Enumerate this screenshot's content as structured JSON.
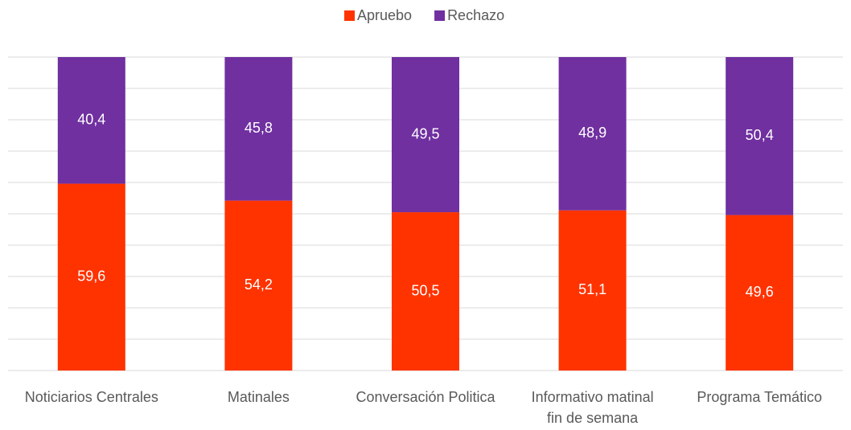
{
  "chart_data": {
    "type": "stacked_bar",
    "categories": [
      "Noticiarios Centrales",
      "Matinales",
      "Conversación Politica",
      "Informativo matinal\nfin de semana",
      "Programa Temático"
    ],
    "series": [
      {
        "name": "Apruebo",
        "color": "#ff3300",
        "values": [
          59.6,
          54.2,
          50.5,
          51.1,
          49.6
        ],
        "value_labels": [
          "59,6",
          "54,2",
          "50,5",
          "51,1",
          "49,6"
        ]
      },
      {
        "name": "Rechazo",
        "color": "#7030a0",
        "values": [
          40.4,
          45.8,
          49.5,
          48.9,
          50.4
        ],
        "value_labels": [
          "40,4",
          "45,8",
          "49,5",
          "48,9",
          "50,4"
        ]
      }
    ],
    "ylim": [
      0,
      100
    ],
    "yticks": [
      0,
      10,
      20,
      30,
      40,
      50,
      60,
      70,
      80,
      90,
      100
    ],
    "grid": true,
    "legend": "top"
  }
}
